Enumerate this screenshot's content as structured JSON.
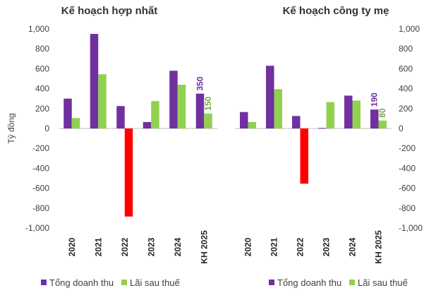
{
  "colors": {
    "revenue": "#7030A0",
    "profit": "#92D050",
    "negative": "#FF0000",
    "axis": "#BFBFBF",
    "label_revenue": "#7030A0",
    "label_profit": "#70AD47"
  },
  "chart_data": [
    {
      "type": "bar",
      "title": "Kế hoạch hợp nhất",
      "ylabel": "Tỷ đồng",
      "ylim": [
        -1000,
        1000
      ],
      "yticks": [
        "-1,000",
        "-800",
        "-600",
        "-400",
        "-200",
        "0",
        "200",
        "400",
        "600",
        "800",
        "1,000"
      ],
      "y_axis_side": "left",
      "categories": [
        "2020",
        "2021",
        "2022",
        "2023",
        "2024",
        "KH 2025"
      ],
      "series": [
        {
          "name": "Tổng doanh thu",
          "values": [
            300,
            950,
            225,
            65,
            580,
            350
          ]
        },
        {
          "name": "Lãi sau thuế",
          "values": [
            105,
            545,
            -885,
            275,
            440,
            150
          ]
        }
      ],
      "data_labels": [
        {
          "series": 0,
          "category": 5,
          "text": "350"
        },
        {
          "series": 1,
          "category": 5,
          "text": "150"
        }
      ],
      "legend": "bottom"
    },
    {
      "type": "bar",
      "title": "Kế hoạch công ty mẹ",
      "ylabel": "",
      "ylim": [
        -1000,
        1000
      ],
      "yticks": [
        "-1,000",
        "-800",
        "-600",
        "-400",
        "-200",
        "0",
        "200",
        "400",
        "600",
        "800",
        "1,000"
      ],
      "y_axis_side": "right",
      "categories": [
        "2020",
        "2021",
        "2022",
        "2023",
        "2024",
        "KH 2025"
      ],
      "series": [
        {
          "name": "Tổng doanh thu",
          "values": [
            165,
            630,
            125,
            5,
            330,
            190
          ]
        },
        {
          "name": "Lãi sau thuế",
          "values": [
            65,
            395,
            -555,
            265,
            280,
            80
          ]
        }
      ],
      "data_labels": [
        {
          "series": 0,
          "category": 5,
          "text": "190"
        },
        {
          "series": 1,
          "category": 5,
          "text": "80"
        }
      ],
      "legend": "bottom"
    }
  ]
}
